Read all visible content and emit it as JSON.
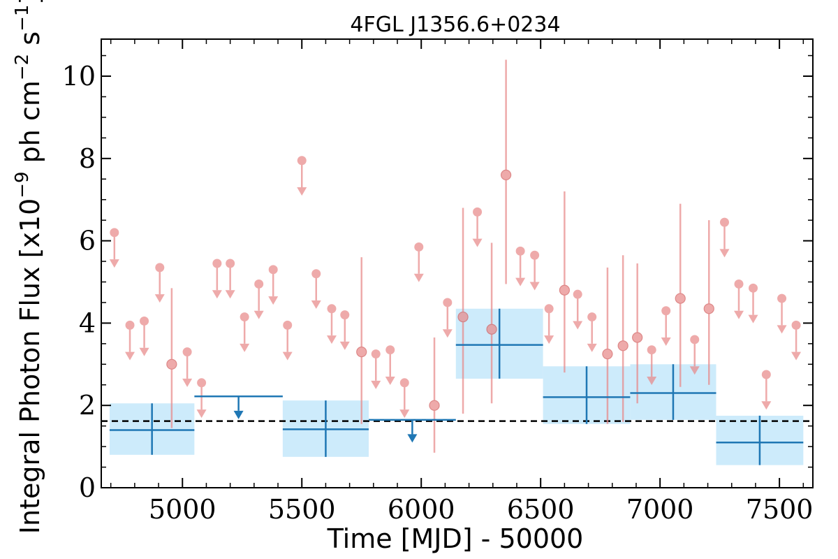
{
  "chart_data": {
    "type": "scatter",
    "title": "4FGL J1356.6+0234",
    "xlabel": "Time [MJD] - 50000",
    "ylabel": "Integral Photon Flux [x10",
    "ylabel_exp": "−9",
    "ylabel_mid": " ph cm",
    "ylabel_exp2": "−2",
    "ylabel_mid2": " s",
    "ylabel_exp3": "−1",
    "ylabel_end": "]",
    "xlim": [
      4660,
      7640
    ],
    "ylim": [
      0,
      10.9
    ],
    "xticks": [
      5000,
      5500,
      6000,
      6500,
      7000,
      7500
    ],
    "yticks": [
      0,
      2,
      4,
      6,
      8,
      10
    ],
    "mean_flux": 1.62,
    "colors": {
      "short_bins": "#e88a8a",
      "long_bins": "#1f77b4",
      "long_band": "#cdebfb",
      "mean_line": "#000000"
    },
    "short_bin_upper_limits": [
      {
        "x": 4715,
        "y": 6.2
      },
      {
        "x": 4780,
        "y": 3.95
      },
      {
        "x": 4840,
        "y": 4.05
      },
      {
        "x": 4905,
        "y": 5.35
      },
      {
        "x": 5020,
        "y": 3.3
      },
      {
        "x": 5080,
        "y": 2.55
      },
      {
        "x": 5145,
        "y": 5.45
      },
      {
        "x": 5200,
        "y": 5.45
      },
      {
        "x": 5260,
        "y": 4.15
      },
      {
        "x": 5320,
        "y": 4.95
      },
      {
        "x": 5380,
        "y": 5.3
      },
      {
        "x": 5440,
        "y": 3.95
      },
      {
        "x": 5500,
        "y": 7.95
      },
      {
        "x": 5560,
        "y": 5.2
      },
      {
        "x": 5625,
        "y": 4.35
      },
      {
        "x": 5680,
        "y": 4.2
      },
      {
        "x": 5810,
        "y": 3.25
      },
      {
        "x": 5870,
        "y": 3.35
      },
      {
        "x": 5930,
        "y": 2.55
      },
      {
        "x": 5990,
        "y": 5.85
      },
      {
        "x": 6110,
        "y": 4.5
      },
      {
        "x": 6235,
        "y": 6.7
      },
      {
        "x": 6415,
        "y": 5.75
      },
      {
        "x": 6475,
        "y": 5.65
      },
      {
        "x": 6535,
        "y": 4.35
      },
      {
        "x": 6655,
        "y": 4.7
      },
      {
        "x": 6715,
        "y": 4.15
      },
      {
        "x": 6965,
        "y": 3.35
      },
      {
        "x": 7025,
        "y": 4.3
      },
      {
        "x": 7145,
        "y": 3.6
      },
      {
        "x": 7270,
        "y": 6.45
      },
      {
        "x": 7330,
        "y": 4.95
      },
      {
        "x": 7390,
        "y": 4.85
      },
      {
        "x": 7445,
        "y": 2.75
      },
      {
        "x": 7510,
        "y": 4.6
      },
      {
        "x": 7570,
        "y": 3.95
      }
    ],
    "short_bin_detections": [
      {
        "x": 4955,
        "y": 3.0,
        "lo": 1.45,
        "hi": 4.85
      },
      {
        "x": 5750,
        "y": 3.3,
        "lo": 1.55,
        "hi": 5.6
      },
      {
        "x": 6055,
        "y": 2.0,
        "lo": 0.85,
        "hi": 3.65
      },
      {
        "x": 6175,
        "y": 4.15,
        "lo": 1.8,
        "hi": 6.8
      },
      {
        "x": 6295,
        "y": 3.85,
        "lo": 2.05,
        "hi": 5.95
      },
      {
        "x": 6355,
        "y": 7.6,
        "lo": 4.95,
        "hi": 10.4
      },
      {
        "x": 6600,
        "y": 4.8,
        "lo": 2.8,
        "hi": 7.2
      },
      {
        "x": 6780,
        "y": 3.25,
        "lo": 1.55,
        "hi": 5.35
      },
      {
        "x": 6845,
        "y": 3.45,
        "lo": 1.6,
        "hi": 5.65
      },
      {
        "x": 6905,
        "y": 3.65,
        "lo": 2.05,
        "hi": 5.45
      },
      {
        "x": 7085,
        "y": 4.6,
        "lo": 2.45,
        "hi": 6.9
      },
      {
        "x": 7205,
        "y": 4.35,
        "lo": 2.5,
        "hi": 6.5
      }
    ],
    "long_bin_detections": [
      {
        "x0": 4695,
        "x1": 5050,
        "y": 1.4,
        "lo": 0.8,
        "hi": 2.05
      },
      {
        "x0": 5420,
        "x1": 5780,
        "y": 1.42,
        "lo": 0.75,
        "hi": 2.12
      },
      {
        "x0": 6145,
        "x1": 6510,
        "y": 3.47,
        "lo": 2.65,
        "hi": 4.35
      },
      {
        "x0": 6510,
        "x1": 6875,
        "y": 2.2,
        "lo": 1.55,
        "hi": 2.95
      },
      {
        "x0": 6875,
        "x1": 7235,
        "y": 2.3,
        "lo": 1.65,
        "hi": 3.0
      },
      {
        "x0": 7235,
        "x1": 7600,
        "y": 1.1,
        "lo": 0.55,
        "hi": 1.75
      }
    ],
    "long_bin_upper_limits": [
      {
        "x0": 5050,
        "x1": 5420,
        "y": 2.22
      },
      {
        "x0": 5780,
        "x1": 6145,
        "y": 1.65
      }
    ]
  }
}
